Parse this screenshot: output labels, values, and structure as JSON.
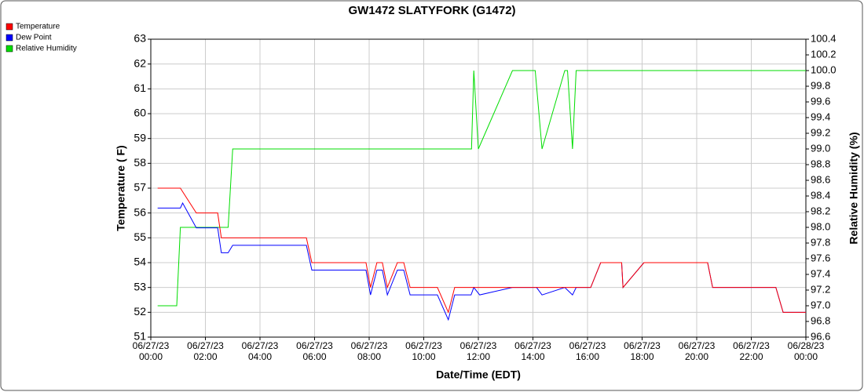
{
  "chart_data": {
    "type": "line",
    "title": "GW1472 SLATYFORK (G1472)",
    "x_label": "Date/Time (EDT)",
    "y_label": "Temperature ( F)",
    "y2_label": "Relative Humidity (%)",
    "grid": true,
    "legend": "top-left",
    "xlim": [
      "06/27/23 00:00",
      "06/28/23 00:00"
    ],
    "xticks": [
      "06/27/23 00:00",
      "06/27/23 02:00",
      "06/27/23 04:00",
      "06/27/23 06:00",
      "06/27/23 08:00",
      "06/27/23 10:00",
      "06/27/23 12:00",
      "06/27/23 14:00",
      "06/27/23 16:00",
      "06/27/23 18:00",
      "06/27/23 20:00",
      "06/27/23 22:00",
      "06/28/23 00:00"
    ],
    "ylim": [
      51,
      63
    ],
    "yticks": [
      51,
      52,
      53,
      54,
      55,
      56,
      57,
      58,
      59,
      60,
      61,
      62,
      63
    ],
    "y2lim": [
      96.6,
      100.4
    ],
    "y2ticks": [
      96.6,
      96.8,
      {
        "value": 97,
        "label": "97.0"
      },
      97.2,
      97.4,
      97.6,
      97.8,
      {
        "value": 98,
        "label": "98.0"
      },
      98.2,
      98.4,
      98.6,
      98.8,
      {
        "value": 99,
        "label": "99.0"
      },
      99.2,
      99.4,
      99.6,
      99.8,
      {
        "value": 100,
        "label": "100.0"
      },
      100.2,
      100.4
    ],
    "series": [
      {
        "name": "Temperature",
        "color": "#ff0000",
        "x": [
          "06/27/23 00:15",
          "06/27/23 01:05",
          "06/27/23 01:40",
          "06/27/23 02:27",
          "06/27/23 02:35",
          "06/27/23 05:42",
          "06/27/23 05:54",
          "06/27/23 07:53",
          "06/27/23 08:03",
          "06/27/23 08:17",
          "06/27/23 08:29",
          "06/27/23 08:40",
          "06/27/23 09:02",
          "06/27/23 09:16",
          "06/27/23 09:30",
          "06/27/23 10:30",
          "06/27/23 10:54",
          "06/27/23 11:08",
          "06/27/23 16:07",
          "06/27/23 16:29",
          "06/27/23 17:15",
          "06/27/23 17:18",
          "06/27/23 18:04",
          "06/27/23 20:24",
          "06/27/23 20:35",
          "06/27/23 22:54",
          "06/27/23 23:10",
          "06/28/23 00:00"
        ],
        "values": [
          57,
          57,
          56,
          56,
          55,
          55,
          54,
          54,
          53,
          54,
          54,
          53,
          54,
          54,
          53,
          53,
          52,
          53,
          53,
          54,
          54,
          53,
          54,
          54,
          53,
          53,
          52,
          52
        ]
      },
      {
        "name": "Dew Point",
        "color": "#0000ff",
        "x": [
          "06/27/23 00:15",
          "06/27/23 01:05",
          "06/27/23 01:10",
          "06/27/23 01:40",
          "06/27/23 02:27",
          "06/27/23 02:35",
          "06/27/23 02:50",
          "06/27/23 03:00",
          "06/27/23 05:42",
          "06/27/23 05:54",
          "06/27/23 07:53",
          "06/27/23 08:03",
          "06/27/23 08:17",
          "06/27/23 08:29",
          "06/27/23 08:40",
          "06/27/23 09:02",
          "06/27/23 09:16",
          "06/27/23 09:30",
          "06/27/23 10:30",
          "06/27/23 10:54",
          "06/27/23 11:08",
          "06/27/23 11:44",
          "06/27/23 11:50",
          "06/27/23 12:03",
          "06/27/23 13:15",
          "06/27/23 14:08",
          "06/27/23 14:20",
          "06/27/23 15:10",
          "06/27/23 15:27",
          "06/27/23 15:35",
          "06/27/23 16:07",
          "06/27/23 16:29",
          "06/27/23 17:15",
          "06/27/23 17:18",
          "06/27/23 18:04",
          "06/27/23 20:24",
          "06/27/23 20:35",
          "06/27/23 22:54",
          "06/27/23 23:10",
          "06/28/23 00:00"
        ],
        "values": [
          56.2,
          56.2,
          56.4,
          55.4,
          55.4,
          54.4,
          54.4,
          54.7,
          54.7,
          53.7,
          53.7,
          52.7,
          53.7,
          53.7,
          52.7,
          53.7,
          53.7,
          52.7,
          52.7,
          51.7,
          52.7,
          52.7,
          53,
          52.7,
          53,
          53,
          52.7,
          53,
          52.7,
          53,
          53,
          54,
          54,
          53,
          54,
          54,
          53,
          53,
          52,
          52
        ]
      },
      {
        "name": "Relative Humidity",
        "color": "#00dd00",
        "axis": "y2",
        "x": [
          "06/27/23 00:15",
          "06/27/23 00:57",
          "06/27/23 01:05",
          "06/27/23 02:50",
          "06/27/23 03:00",
          "06/27/23 11:45",
          "06/27/23 11:50",
          "06/27/23 12:00",
          "06/27/23 13:15",
          "06/27/23 14:05",
          "06/27/23 14:20",
          "06/27/23 15:10",
          "06/27/23 15:16",
          "06/27/23 15:27",
          "06/27/23 15:35",
          "06/28/23 00:00"
        ],
        "values": [
          97,
          97,
          98,
          98,
          99,
          99,
          100,
          99,
          100,
          100,
          99,
          100,
          100,
          99,
          100,
          100
        ]
      }
    ]
  }
}
